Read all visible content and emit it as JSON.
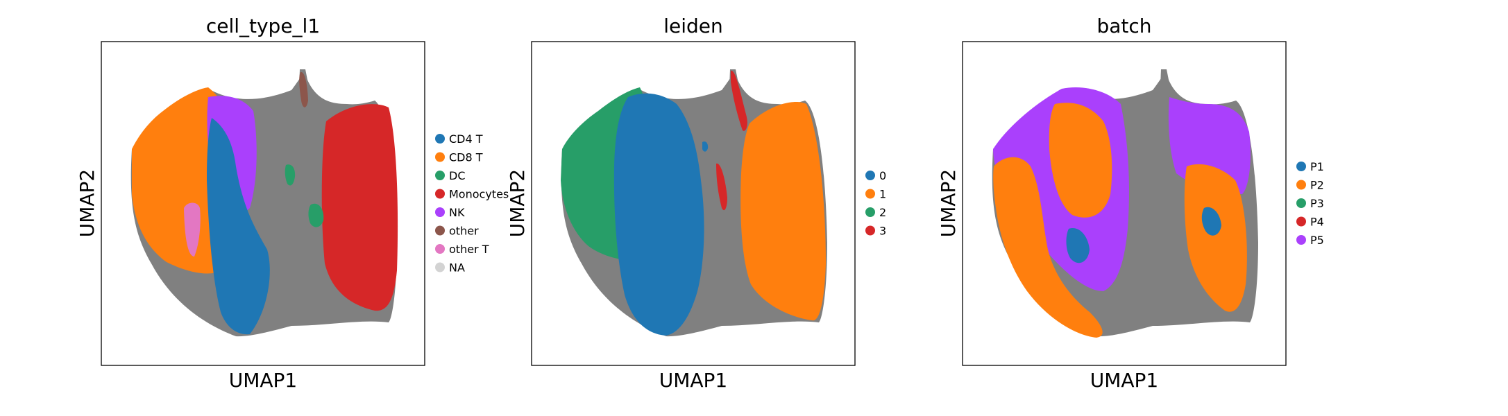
{
  "figure": {
    "background": "#ffffff"
  },
  "chart_data": [
    {
      "type": "scatter",
      "title": "cell_type_l1",
      "xlabel": "UMAP1",
      "ylabel": "UMAP2",
      "grid": false,
      "legend_position": "right",
      "edge_color": "#808080",
      "categories": [
        {
          "label": "CD4 T",
          "color": "#1f77b4"
        },
        {
          "label": "CD8 T",
          "color": "#ff7f0e"
        },
        {
          "label": "DC",
          "color": "#279e68"
        },
        {
          "label": "Monocytes",
          "color": "#d62728"
        },
        {
          "label": "NK",
          "color": "#aa40fc"
        },
        {
          "label": "other",
          "color": "#8c564b"
        },
        {
          "label": "other T",
          "color": "#e377c2"
        },
        {
          "label": "NA",
          "color": "#d3d3d3"
        }
      ]
    },
    {
      "type": "scatter",
      "title": "leiden",
      "xlabel": "UMAP1",
      "ylabel": "UMAP2",
      "grid": false,
      "legend_position": "right",
      "edge_color": "#808080",
      "categories": [
        {
          "label": "0",
          "color": "#1f77b4"
        },
        {
          "label": "1",
          "color": "#ff7f0e"
        },
        {
          "label": "2",
          "color": "#279e68"
        },
        {
          "label": "3",
          "color": "#d62728"
        }
      ]
    },
    {
      "type": "scatter",
      "title": "batch",
      "xlabel": "UMAP1",
      "ylabel": "UMAP2",
      "grid": false,
      "legend_position": "right",
      "edge_color": "#808080",
      "categories": [
        {
          "label": "P1",
          "color": "#1f77b4"
        },
        {
          "label": "P2",
          "color": "#ff7f0e"
        },
        {
          "label": "P3",
          "color": "#279e68"
        },
        {
          "label": "P4",
          "color": "#d62728"
        },
        {
          "label": "P5",
          "color": "#aa40fc"
        }
      ]
    }
  ]
}
